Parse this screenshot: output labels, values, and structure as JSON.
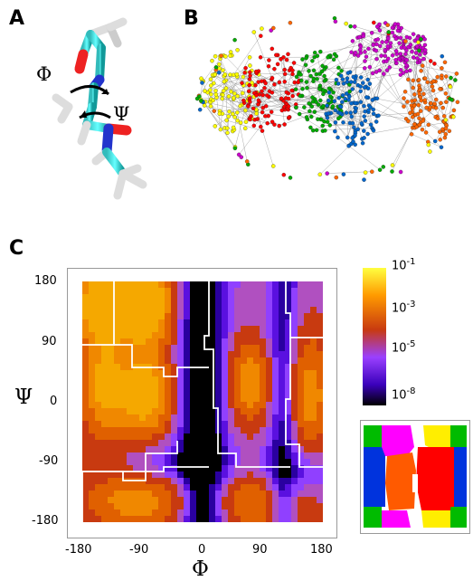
{
  "panels": {
    "a": "A",
    "b": "B",
    "c": "C"
  },
  "angles": {
    "phi": "Φ",
    "psi": "Ψ"
  },
  "axes": {
    "x_label": "Φ",
    "y_label": "Ψ",
    "x_ticks": [
      "-180",
      "-90",
      "0",
      "90",
      "180"
    ],
    "y_ticks": [
      "180",
      "90",
      "0",
      "-90",
      "-180"
    ],
    "xlim": [
      -180,
      180
    ],
    "ylim": [
      -180,
      180
    ]
  },
  "colorbar": {
    "base": "10",
    "exponents": [
      "-1",
      "-3",
      "-5",
      "-8"
    ],
    "colors": [
      "#ffff33",
      "#ff9900",
      "#cc3300",
      "#9933ff",
      "#4400cc",
      "#000000"
    ]
  },
  "cluster_colors": [
    "#ffff00",
    "#ff0000",
    "#00aa00",
    "#0066cc",
    "#cc00cc",
    "#ff6600"
  ],
  "chart_data": {
    "type": "heatmap",
    "xlabel": "Φ",
    "ylabel": "Ψ",
    "x_range": [
      -180,
      180
    ],
    "y_range": [
      -180,
      180
    ],
    "color_scale": "log",
    "colorbar_ticks": [
      "10^-1",
      "10^-3",
      "10^-5",
      "10^-8"
    ]
  }
}
